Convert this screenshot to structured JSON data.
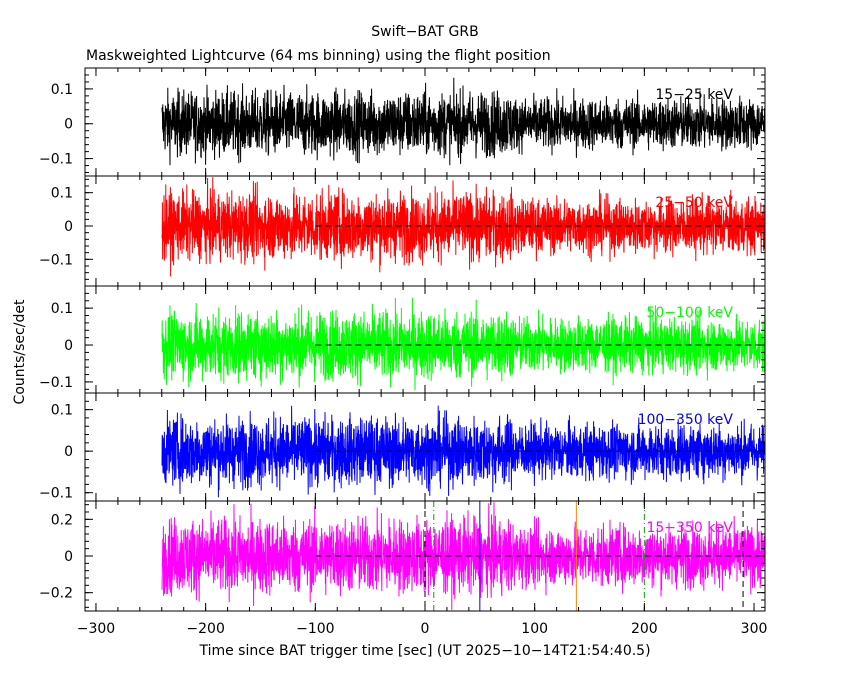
{
  "chart_data": {
    "type": "line",
    "title": "Swift−BAT GRB",
    "subtitle": "Maskweighted Lightcurve (64 ms binning) using the flight position",
    "xlabel": "Time since BAT trigger time [sec] (UT 2025−10−14T21:54:40.5)",
    "ylabel": "Counts/sec/det",
    "xlim": [
      -310,
      310
    ],
    "x_ticks": [
      -300,
      -200,
      -100,
      0,
      100,
      200,
      300
    ],
    "x_tick_labels": [
      "−300",
      "−200",
      "−100",
      "0",
      "100",
      "200",
      "300"
    ],
    "data_start": -240,
    "data_end": 310,
    "reference_line_start": -100,
    "marker_lines": [
      {
        "x": 0,
        "color": "#000000",
        "style": "dashed"
      },
      {
        "x": 8,
        "color": "#00aa00",
        "style": "dashdot"
      },
      {
        "x": 50,
        "color": "#0000ff",
        "style": "solid"
      },
      {
        "x": 138,
        "color": "#ff8000",
        "style": "solid"
      },
      {
        "x": 200,
        "color": "#00aa00",
        "style": "dashdot"
      },
      {
        "x": 290,
        "color": "#000000",
        "style": "dashed"
      }
    ],
    "series": [
      {
        "name": "15−25 keV",
        "color": "#000000",
        "ylim": [
          -0.15,
          0.16
        ],
        "ticks": [
          -0.1,
          0,
          0.1
        ],
        "tick_labels": [
          "−0.1",
          "0",
          "0.1"
        ],
        "amplitude": 0.09
      },
      {
        "name": "25−50 keV",
        "color": "#ff0000",
        "ylim": [
          -0.18,
          0.15
        ],
        "ticks": [
          -0.1,
          0,
          0.1
        ],
        "tick_labels": [
          "−0.1",
          "0",
          "0.1"
        ],
        "amplitude": 0.1
      },
      {
        "name": "50−100 keV",
        "color": "#00ff00",
        "ylim": [
          -0.13,
          0.16
        ],
        "ticks": [
          -0.1,
          0,
          0.1
        ],
        "tick_labels": [
          "−0.1",
          "0",
          "0.1"
        ],
        "amplitude": 0.09
      },
      {
        "name": "100−350 keV",
        "color": "#0000ff",
        "ylim": [
          -0.12,
          0.14
        ],
        "ticks": [
          -0.1,
          0,
          0.1
        ],
        "tick_labels": [
          "−0.1",
          "0",
          "0.1"
        ],
        "amplitude": 0.08
      },
      {
        "name": "15−350 keV",
        "color": "#ff00ff",
        "ylim": [
          -0.3,
          0.3
        ],
        "ticks": [
          -0.2,
          0,
          0.2
        ],
        "tick_labels": [
          "−0.2",
          "0",
          "0.2"
        ],
        "amplitude": 0.2
      }
    ]
  }
}
